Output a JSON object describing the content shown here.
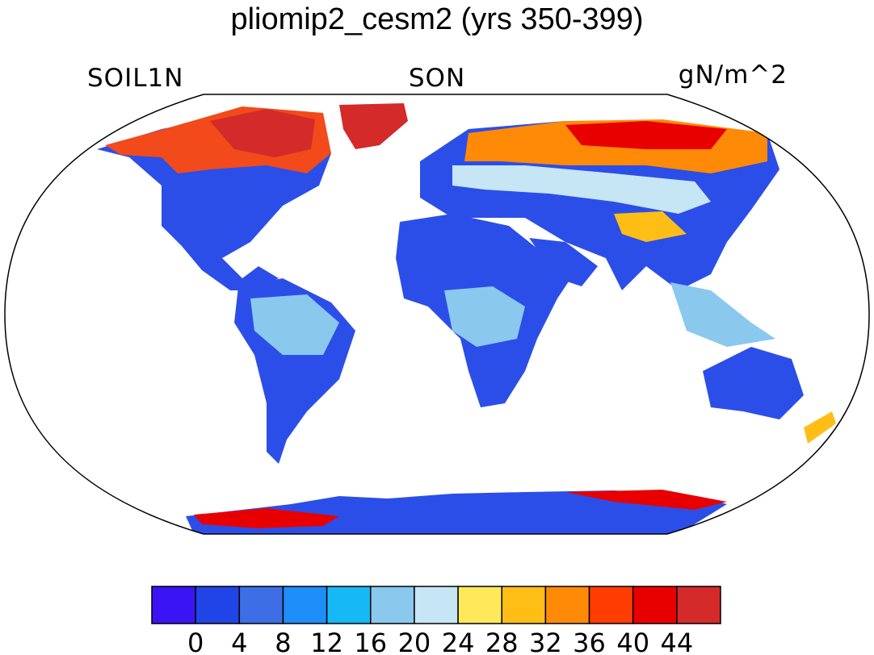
{
  "title": "pliomip2_cesm2 (yrs 350-399)",
  "left_label": "SOIL1N",
  "center_label": "SON",
  "right_label": "gN/m^2",
  "colorbar": {
    "colors": [
      "#3b14f5",
      "#2144e6",
      "#3d6ee6",
      "#1e8ef8",
      "#16b9f5",
      "#8ac8ee",
      "#c6e5f5",
      "#ffe95a",
      "#ffbe16",
      "#ff8a08",
      "#ff3d00",
      "#e80000",
      "#d42a2a"
    ],
    "tick_labels": [
      "0",
      "4",
      "8",
      "12",
      "16",
      "20",
      "24",
      "28",
      "32",
      "36",
      "40",
      "44"
    ]
  }
}
